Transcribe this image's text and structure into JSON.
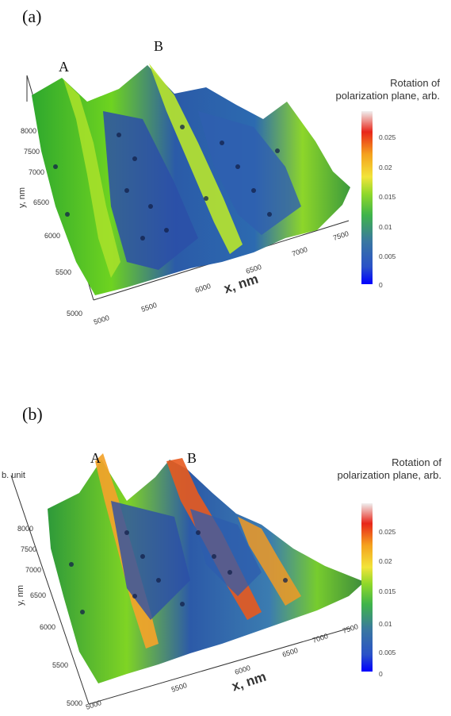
{
  "chart_data": [
    {
      "type": "surface",
      "panel_label": "(a)",
      "xlabel": "x, nm",
      "ylabel": "y, nm",
      "zlabel_fragment": "",
      "colorbar_title": [
        "Rotation of",
        "polarization plane, arb."
      ],
      "colorbar_ticks": [
        "0",
        "0.005",
        "0.01",
        "0.015",
        "0.02",
        "0.025"
      ],
      "x_ticks": [
        "5000",
        "5500",
        "6000",
        "6500",
        "7000",
        "7500"
      ],
      "y_ticks": [
        "5000",
        "5500",
        "6000",
        "6500",
        "7000",
        "7500",
        "8000"
      ],
      "ridge_labels": [
        "A",
        "B"
      ],
      "zlim": [
        0,
        0.03
      ]
    },
    {
      "type": "surface",
      "panel_label": "(b)",
      "xlabel": "x, nm",
      "ylabel": "y, nm",
      "zlabel_fragment": "b. unit",
      "colorbar_title": [
        "Rotation of",
        "polarization plane, arb."
      ],
      "colorbar_ticks": [
        "0",
        "0.005",
        "0.01",
        "0.015",
        "0.02",
        "0.025"
      ],
      "x_ticks": [
        "5000",
        "5500",
        "6000",
        "6500",
        "7000",
        "7500"
      ],
      "y_ticks": [
        "5000",
        "5500",
        "6000",
        "6500",
        "7000",
        "7500",
        "8000"
      ],
      "ridge_labels": [
        "A",
        "B"
      ],
      "zlim": [
        0,
        0.03
      ]
    }
  ]
}
